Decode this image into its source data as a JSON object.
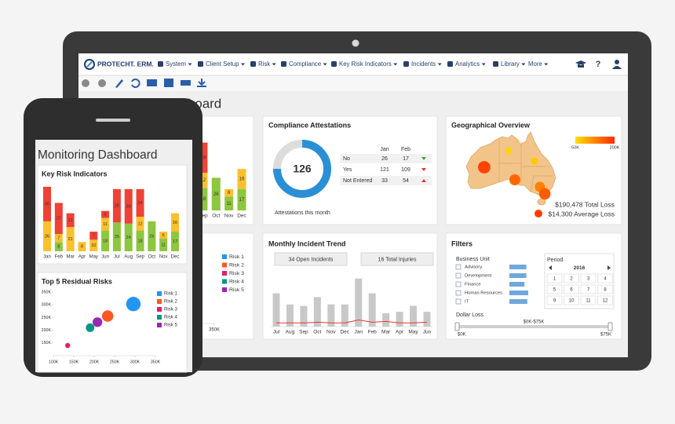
{
  "nav": {
    "logo": "PROTECHT. ERM.",
    "menu": [
      "System",
      "Client Setup",
      "Risk",
      "Compliance",
      "Key Risk Indicators",
      "Incidents",
      "Analytics",
      "Library",
      "More"
    ],
    "help": "?"
  },
  "page_title": "Monitoring Dashboard",
  "chart_data": [
    {
      "type": "stacked_bar",
      "title": "Key Risk Indicators",
      "categories": [
        "Jan",
        "Feb",
        "Mar",
        "Apr",
        "May",
        "Jun",
        "Jul",
        "Aug",
        "Sep",
        "Oct",
        "Nov",
        "Dec"
      ],
      "series": [
        {
          "color": "#8dc63f",
          "values": [
            0,
            8,
            0,
            0,
            0,
            18,
            25,
            24,
            18,
            26,
            11,
            17
          ]
        },
        {
          "color": "#fbc02d",
          "values": [
            26,
            7,
            21,
            8,
            10,
            11,
            0,
            0,
            12,
            0,
            6,
            16
          ]
        },
        {
          "color": "#ef4136",
          "values": [
            30,
            27,
            12,
            0,
            7,
            6,
            29,
            30,
            24,
            0,
            0,
            0
          ]
        }
      ],
      "ylim": [
        0,
        60
      ]
    },
    {
      "type": "scatter",
      "title": "Top 5 Residual Risks",
      "series": [
        {
          "name": "Risk 1",
          "color": "#2196f3",
          "x": [
            296000
          ],
          "values": [
            303000
          ],
          "sizes": [
            40
          ]
        },
        {
          "name": "Risk 2",
          "color": "#ff5722",
          "x": [
            233000
          ],
          "values": [
            256000
          ],
          "sizes": [
            25
          ]
        },
        {
          "name": "Risk 3",
          "color": "#e91e63",
          "x": [
            135000
          ],
          "values": [
            140000
          ],
          "sizes": [
            5
          ]
        },
        {
          "name": "Risk 4",
          "color": "#009688",
          "x": [
            190000
          ],
          "values": [
            210000
          ],
          "sizes": [
            14
          ]
        },
        {
          "name": "Risk 5",
          "color": "#9c27b0",
          "x": [
            208000
          ],
          "values": [
            232000
          ],
          "sizes": [
            18
          ]
        }
      ],
      "xlim": [
        100000,
        350000
      ],
      "ylim": [
        100000,
        350000
      ],
      "xticks": [
        {
          "value": 100000,
          "label": "100K"
        },
        {
          "value": 150000,
          "label": "150K"
        },
        {
          "value": 200000,
          "label": "200K"
        },
        {
          "value": 250000,
          "label": "250K"
        },
        {
          "value": 300000,
          "label": "300K"
        },
        {
          "value": 350000,
          "label": "350K"
        }
      ],
      "yticks": [
        {
          "value": 150000,
          "label": "150K"
        },
        {
          "value": 200000,
          "label": "200K"
        },
        {
          "value": 250000,
          "label": "250K"
        },
        {
          "value": 300000,
          "label": "300K"
        },
        {
          "value": 350000,
          "label": "350K"
        }
      ]
    },
    {
      "type": "donut",
      "title": "Compliance Attestations",
      "values": [
        126,
        42
      ],
      "colors": [
        "#2b8fd6",
        "#dcdcdc"
      ],
      "caption": "Attestations this month",
      "table": {
        "columns": [
          "Jan",
          "Feb"
        ],
        "rows": [
          {
            "label": "No",
            "values": [
              26,
              17
            ],
            "trend": "down",
            "trend_color": "#43a047"
          },
          {
            "label": "Yes",
            "values": [
              121,
              109
            ],
            "trend": "down",
            "trend_color": "#e53935"
          },
          {
            "label": "Not Entered",
            "values": [
              33,
              54
            ],
            "trend": "up",
            "trend_color": "#e53935"
          }
        ]
      }
    },
    {
      "type": "bar_line",
      "title": "Monthly Incident Trend",
      "annotations": [
        "34 Open Incidents",
        "16 Total Injuries"
      ],
      "categories": [
        "Jul",
        "Aug",
        "Sep",
        "Oct",
        "Nov",
        "Dec",
        "Jan",
        "Feb",
        "Mar",
        "Apr",
        "May",
        "Jun"
      ],
      "series": [
        {
          "type": "bar",
          "color": "#c8c8c8",
          "values": [
            45,
            30,
            28,
            40,
            30,
            30,
            65,
            45,
            18,
            20,
            28,
            20
          ]
        },
        {
          "type": "line",
          "color": "#e53935",
          "values": [
            5,
            5,
            5,
            6,
            5,
            5,
            9,
            6,
            7,
            5,
            5,
            6
          ]
        }
      ],
      "ylim": [
        0,
        70
      ]
    }
  ],
  "geo": {
    "title": "Geographical Overview",
    "legend": {
      "lim": [
        50000,
        200000
      ],
      "colors": [
        "#ffe000",
        "#ff2a00"
      ],
      "ticks": [
        {
          "value": 50000,
          "label": "50K"
        },
        {
          "value": 200000,
          "label": "200K"
        }
      ]
    },
    "points": [
      {
        "lon": 121.8,
        "lat": -26.1,
        "value": 180000
      },
      {
        "lon": 132.8,
        "lat": -18.4,
        "value": 60000
      },
      {
        "lon": 144.5,
        "lat": -23.2,
        "value": 70000
      },
      {
        "lon": 135.6,
        "lat": -32.0,
        "value": 150000
      },
      {
        "lon": 146.9,
        "lat": -35.3,
        "value": 130000
      },
      {
        "lon": 149.1,
        "lat": -38.6,
        "value": 160000
      }
    ],
    "total": "$190,478 Total Loss",
    "average": "$14,300 Average Loss"
  },
  "filters": {
    "title": "Filters",
    "business_unit": {
      "label": "Business Unit",
      "items": [
        "Advisory",
        "Development",
        "Finance",
        "Human Resources",
        "IT"
      ],
      "values": [
        90,
        90,
        80,
        100,
        95
      ],
      "xlim": [
        0,
        100
      ],
      "color": "#6fa8dc"
    },
    "period": {
      "label": "Period",
      "year": "2016",
      "months": [
        1,
        2,
        3,
        4,
        5,
        6,
        7,
        8,
        9,
        10,
        11,
        12
      ]
    },
    "dollar_loss": {
      "label": "Dollar Loss",
      "range_label": "$0K-$75K",
      "min_label": "$0K",
      "max_label": "$75K"
    }
  }
}
